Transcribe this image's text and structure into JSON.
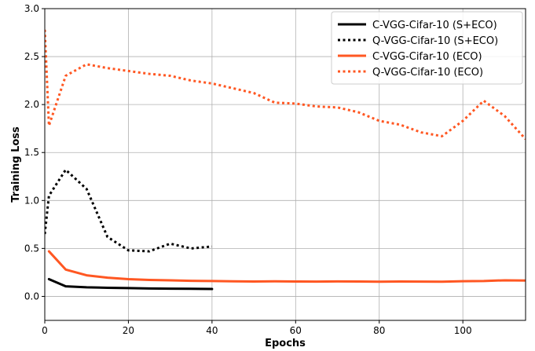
{
  "chart_data": {
    "type": "line",
    "title": "",
    "xlabel": "Epochs",
    "ylabel": "Training Loss",
    "xlim": [
      0,
      115
    ],
    "ylim": [
      -0.25,
      3.0
    ],
    "xticks": [
      0,
      20,
      40,
      60,
      80,
      100
    ],
    "xtick_labels": [
      "0",
      "20",
      "40",
      "60",
      "80",
      "100"
    ],
    "yticks": [
      0.0,
      0.5,
      1.0,
      1.5,
      2.0,
      2.5,
      3.0
    ],
    "ytick_labels": [
      "0.0",
      "0.5",
      "1.0",
      "1.5",
      "2.0",
      "2.5",
      "3.0"
    ],
    "grid": true,
    "legend_position": "top-right",
    "series": [
      {
        "name": "C-VGG-Cifar-10 (S+ECO)",
        "color": "#000000",
        "style": "solid",
        "x": [
          1,
          5,
          10,
          15,
          20,
          25,
          30,
          35,
          40
        ],
        "y": [
          0.18,
          0.105,
          0.095,
          0.09,
          0.087,
          0.083,
          0.081,
          0.079,
          0.077
        ]
      },
      {
        "name": "Q-VGG-Cifar-10 (S+ECO)",
        "color": "#000000",
        "style": "dotted",
        "x": [
          0,
          1,
          5,
          10,
          15,
          20,
          25,
          30,
          35,
          40
        ],
        "y": [
          0.65,
          1.05,
          1.32,
          1.12,
          0.62,
          0.48,
          0.47,
          0.55,
          0.5,
          0.52
        ]
      },
      {
        "name": "C-VGG-Cifar-10 (ECO)",
        "color": "#ff5722",
        "style": "solid",
        "x": [
          1,
          5,
          10,
          15,
          20,
          25,
          30,
          35,
          40,
          45,
          50,
          55,
          60,
          65,
          70,
          75,
          80,
          85,
          90,
          95,
          100,
          105,
          110,
          115
        ],
        "y": [
          0.47,
          0.28,
          0.22,
          0.195,
          0.18,
          0.172,
          0.168,
          0.162,
          0.16,
          0.157,
          0.155,
          0.157,
          0.155,
          0.154,
          0.156,
          0.155,
          0.153,
          0.155,
          0.154,
          0.153,
          0.158,
          0.16,
          0.168,
          0.165
        ]
      },
      {
        "name": "Q-VGG-Cifar-10 (ECO)",
        "color": "#ff5722",
        "style": "dotted",
        "x": [
          0,
          1,
          5,
          10,
          15,
          20,
          25,
          30,
          35,
          40,
          45,
          50,
          55,
          60,
          65,
          70,
          75,
          80,
          85,
          90,
          95,
          100,
          105,
          110,
          115
        ],
        "y": [
          2.78,
          1.78,
          2.3,
          2.42,
          2.38,
          2.35,
          2.32,
          2.3,
          2.25,
          2.22,
          2.17,
          2.12,
          2.02,
          2.01,
          1.98,
          1.97,
          1.92,
          1.83,
          1.79,
          1.71,
          1.67,
          1.83,
          2.04,
          1.88,
          1.64
        ]
      }
    ]
  }
}
